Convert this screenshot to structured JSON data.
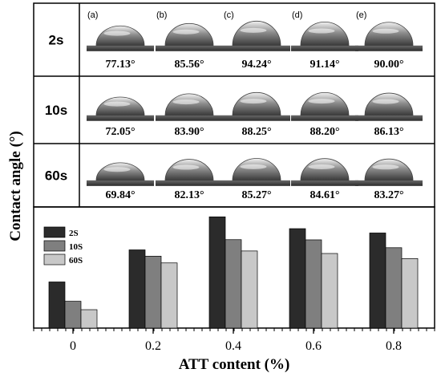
{
  "ylabel": "Contact angle (°)",
  "times": [
    {
      "label": "2s",
      "angles": [
        "77.13°",
        "85.56°",
        "94.24°",
        "91.14°",
        "90.00°"
      ]
    },
    {
      "label": "10s",
      "angles": [
        "72.05°",
        "83.90°",
        "88.25°",
        "88.20°",
        "86.13°"
      ]
    },
    {
      "label": "60s",
      "angles": [
        "69.84°",
        "82.13°",
        "85.27°",
        "84.61°",
        "83.27°"
      ]
    }
  ],
  "panel_letters": [
    "(a)",
    "(b)",
    "(c)",
    "(d)",
    "(e)"
  ],
  "colors": {
    "2S": "#2b2b2b",
    "10S": "#7f7f7f",
    "60S": "#c8c8c8",
    "frame": "#000000"
  },
  "chart_data": {
    "type": "bar",
    "xlabel": "ATT content (%)",
    "ylabel": "Contact angle (°)",
    "categories": [
      "0",
      "0.2",
      "0.4",
      "0.6",
      "0.8"
    ],
    "series": [
      {
        "name": "2S",
        "values": [
          77.13,
          85.56,
          94.24,
          91.14,
          90.0
        ]
      },
      {
        "name": "10S",
        "values": [
          72.05,
          83.9,
          88.25,
          88.2,
          86.13
        ]
      },
      {
        "name": "60S",
        "values": [
          69.84,
          82.13,
          85.27,
          84.61,
          83.27
        ]
      }
    ],
    "ylim": [
      65,
      96
    ],
    "legend": "top-left",
    "grid": false
  }
}
